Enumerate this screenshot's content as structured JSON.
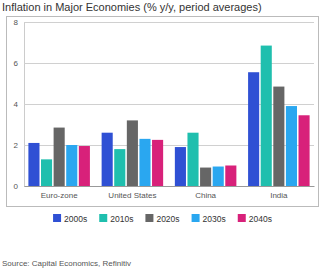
{
  "chart_data": {
    "type": "bar",
    "title": "Inflation in Major Economies (% y/y, period averages)",
    "source": "Source: Capital Economics, Refinitiv",
    "categories": [
      "Euro-zone",
      "United States",
      "China",
      "India"
    ],
    "series": [
      {
        "name": "2000s",
        "color": "#2f50d4",
        "values": [
          2.1,
          2.6,
          1.9,
          5.55
        ]
      },
      {
        "name": "2010s",
        "color": "#1fbfae",
        "values": [
          1.3,
          1.8,
          2.6,
          6.85
        ]
      },
      {
        "name": "2020s",
        "color": "#666666",
        "values": [
          2.85,
          3.2,
          0.9,
          4.85
        ]
      },
      {
        "name": "2030s",
        "color": "#2aa7f0",
        "values": [
          2.0,
          2.3,
          0.95,
          3.9
        ]
      },
      {
        "name": "2040s",
        "color": "#d8217a",
        "values": [
          1.95,
          2.25,
          1.0,
          3.45
        ]
      }
    ],
    "ylim": [
      0,
      8
    ],
    "yticks": [
      0,
      2,
      4,
      6,
      8
    ],
    "grid": true,
    "legend": "bottom"
  }
}
